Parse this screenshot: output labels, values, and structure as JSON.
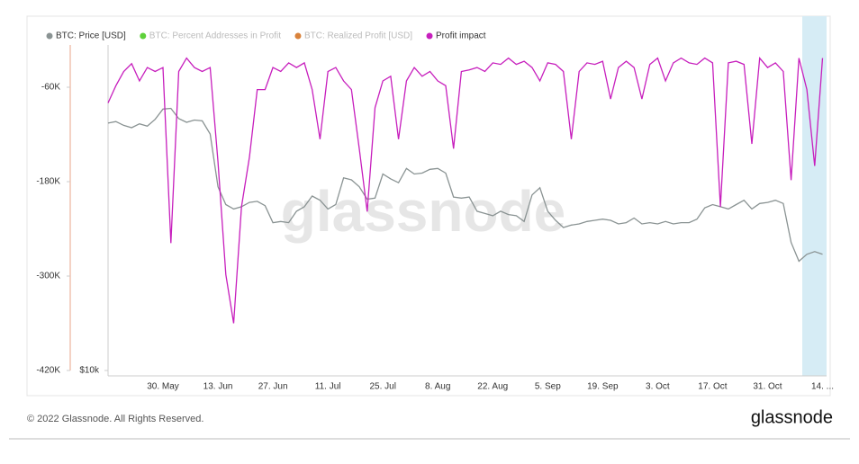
{
  "chart_data": {
    "type": "line",
    "watermark": "glassnode",
    "categories": [
      null,
      null,
      null,
      null,
      null,
      null,
      null,
      "30. May",
      null,
      null,
      null,
      null,
      null,
      null,
      "13. Jun",
      null,
      null,
      null,
      null,
      null,
      null,
      "27. Jun",
      null,
      null,
      null,
      null,
      null,
      null,
      "11. Jul",
      null,
      null,
      null,
      null,
      null,
      null,
      "25. Jul",
      null,
      null,
      null,
      null,
      null,
      null,
      "8. Aug",
      null,
      null,
      null,
      null,
      null,
      null,
      "22. Aug",
      null,
      null,
      null,
      null,
      null,
      null,
      "5. Sep",
      null,
      null,
      null,
      null,
      null,
      null,
      "19. Sep",
      null,
      null,
      null,
      null,
      null,
      null,
      "3. Oct",
      null,
      null,
      null,
      null,
      null,
      null,
      "17. Oct",
      null,
      null,
      null,
      null,
      null,
      null,
      "31. Oct",
      null,
      null,
      null,
      null,
      null,
      null,
      "14. ..."
    ],
    "series": [
      {
        "name": "BTC: Price [USD]",
        "color": "#8a9393",
        "axis": "y2",
        "values": [
          29800,
          30000,
          29500,
          29200,
          29700,
          29400,
          30300,
          31700,
          31800,
          30400,
          29900,
          30200,
          30100,
          28400,
          22500,
          20800,
          20400,
          20600,
          21000,
          21100,
          20700,
          19200,
          19300,
          19200,
          20200,
          20600,
          21600,
          21200,
          20400,
          20800,
          23400,
          23200,
          22500,
          21300,
          21400,
          23800,
          23300,
          22900,
          24400,
          23800,
          23900,
          24300,
          24400,
          23900,
          21500,
          21400,
          21500,
          20200,
          20000,
          19800,
          20200,
          19900,
          19800,
          19300,
          21700,
          22400,
          20200,
          19400,
          18800,
          19000,
          19100,
          19300,
          19400,
          19500,
          19400,
          19100,
          19200,
          19600,
          19100,
          19200,
          19100,
          19300,
          19100,
          19200,
          19200,
          19500,
          20500,
          20800,
          20600,
          20400,
          20800,
          21200,
          20400,
          20900,
          21000,
          21200,
          20900,
          17600,
          16200,
          16700,
          16900,
          16700
        ]
      },
      {
        "name": "BTC: Percent Addresses in Profit",
        "color": "#5ed13a",
        "visible": false
      },
      {
        "name": "BTC: Realized Profit [USD]",
        "color": "#d9823b",
        "visible": false
      },
      {
        "name": "Profit impact",
        "color": "#c71fbd",
        "values": [
          -80000,
          -58000,
          -40000,
          -30000,
          -52000,
          -35000,
          -40000,
          -35000,
          -258000,
          -40000,
          -23000,
          -35000,
          -40000,
          -35000,
          -155000,
          -298000,
          -360000,
          -212000,
          -149000,
          -63000,
          -63000,
          -35000,
          -40000,
          -29000,
          -35000,
          -29000,
          -63000,
          -126000,
          -40000,
          -35000,
          -52000,
          -63000,
          -138000,
          -218000,
          -86000,
          -52000,
          -46000,
          -126000,
          -52000,
          -35000,
          -46000,
          -40000,
          -52000,
          -58000,
          -138000,
          -40000,
          -38000,
          -35000,
          -40000,
          -29000,
          -31000,
          -23000,
          -31000,
          -27000,
          -35000,
          -52000,
          -29000,
          -31000,
          -40000,
          -126000,
          -40000,
          -29000,
          -31000,
          -27000,
          -75000,
          -35000,
          -27000,
          -35000,
          -75000,
          -31000,
          -23000,
          -52000,
          -29000,
          -23000,
          -29000,
          -31000,
          -23000,
          -29000,
          -212000,
          -29000,
          -27000,
          -31000,
          -132000,
          -23000,
          -35000,
          -29000,
          -40000,
          -178000,
          -23000,
          -63000,
          -160000,
          -23000
        ]
      }
    ],
    "ylim": [
      -420000,
      0
    ],
    "yticks": [
      {
        "value": -60000,
        "label": "-60K"
      },
      {
        "value": -180000,
        "label": "-180K"
      },
      {
        "value": -300000,
        "label": "-300K"
      },
      {
        "value": -420000,
        "label": "-420K"
      }
    ],
    "y2lim": [
      10000,
      43000
    ],
    "y2log": true,
    "y2ticks": [
      {
        "value": 10000,
        "label": "$10k"
      }
    ],
    "grid": false
  },
  "footer": {
    "copyright": "© 2022 Glassnode. All Rights Reserved.",
    "logo": "glassnode"
  }
}
